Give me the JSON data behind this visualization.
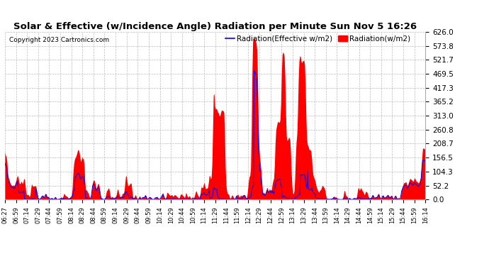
{
  "title": "Solar & Effective (w/Incidence Angle) Radiation per Minute Sun Nov 5 16:26",
  "copyright": "Copyright 2023 Cartronics.com",
  "legend_effective": "Radiation(Effective w/m2)",
  "legend_radiation": "Radiation(w/m2)",
  "ymin": 0.0,
  "ymax": 626.0,
  "yticks": [
    0.0,
    52.2,
    104.3,
    156.5,
    208.7,
    260.8,
    313.0,
    365.2,
    417.3,
    469.5,
    521.7,
    573.8,
    626.0
  ],
  "background_color": "#ffffff",
  "plot_bg_color": "#ffffff",
  "grid_color": "#aaaaaa",
  "bar_color": "#ff0000",
  "line_color": "#0000ff",
  "title_color": "#000000",
  "copyright_color": "#000000",
  "legend_eff_color": "#0000ff",
  "legend_rad_color": "#ff0000",
  "xtick_labels": [
    "06:27",
    "06:59",
    "07:14",
    "07:29",
    "07:44",
    "07:59",
    "08:14",
    "08:29",
    "08:44",
    "08:59",
    "09:14",
    "09:29",
    "09:44",
    "09:59",
    "10:14",
    "10:29",
    "10:44",
    "10:59",
    "11:14",
    "11:29",
    "11:44",
    "11:59",
    "12:14",
    "12:29",
    "12:44",
    "12:59",
    "13:14",
    "13:29",
    "13:44",
    "13:59",
    "14:14",
    "14:29",
    "14:44",
    "14:59",
    "15:14",
    "15:29",
    "15:44",
    "15:59",
    "16:14"
  ],
  "n_points": 600
}
